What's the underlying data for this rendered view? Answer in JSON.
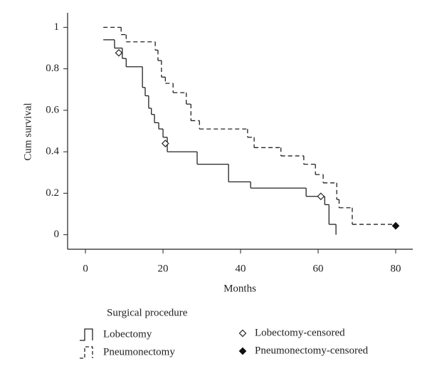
{
  "chart_data": {
    "type": "step",
    "x_label": "Months",
    "y_label": "Cum survival",
    "legend_title": "Surgical procedure",
    "xlim": [
      -4.6,
      84.4
    ],
    "ylim": [
      -0.07,
      1.07
    ],
    "xticks": [
      0,
      20,
      40,
      60,
      80
    ],
    "yticks": [
      0,
      0.2,
      0.4,
      0.6,
      0.8,
      1
    ],
    "series": [
      {
        "name": "Lobectomy",
        "color": "#222222",
        "dash": false,
        "x": [
          4.6,
          7.5,
          9.5,
          10.5,
          14.7,
          15.4,
          16.3,
          17,
          17.8,
          18.9,
          20,
          21.1,
          28.8,
          36.9,
          42.6,
          56.9,
          61.7,
          62.8,
          64.6
        ],
        "values": [
          0.94,
          0.9,
          0.85,
          0.81,
          0.71,
          0.67,
          0.61,
          0.58,
          0.54,
          0.51,
          0.47,
          0.4,
          0.34,
          0.255,
          0.225,
          0.185,
          0.145,
          0.05,
          0
        ]
      },
      {
        "name": "Pneumonectomy",
        "color": "#222222",
        "dash": true,
        "x": [
          4.6,
          9.2,
          10.5,
          18,
          18.7,
          19.6,
          20.6,
          22.6,
          26,
          27.2,
          29.4,
          41.8,
          43.5,
          50.4,
          56.3,
          59.3,
          61.3,
          64.8,
          65.4,
          68.8,
          80
        ],
        "values": [
          1,
          0.965,
          0.93,
          0.89,
          0.84,
          0.76,
          0.73,
          0.685,
          0.63,
          0.55,
          0.51,
          0.47,
          0.42,
          0.38,
          0.34,
          0.29,
          0.25,
          0.17,
          0.13,
          0.05,
          0.05
        ]
      }
    ],
    "censored": [
      {
        "name": "Lobectomy-censored",
        "color": "#222222",
        "filled": false,
        "x": [
          8.6,
          20.6,
          60.7
        ],
        "values": [
          0.877,
          0.44,
          0.185
        ]
      },
      {
        "name": "Pneumonectomy-censored",
        "color": "#111111",
        "filled": true,
        "x": [
          80
        ],
        "values": [
          0.043
        ]
      }
    ]
  }
}
